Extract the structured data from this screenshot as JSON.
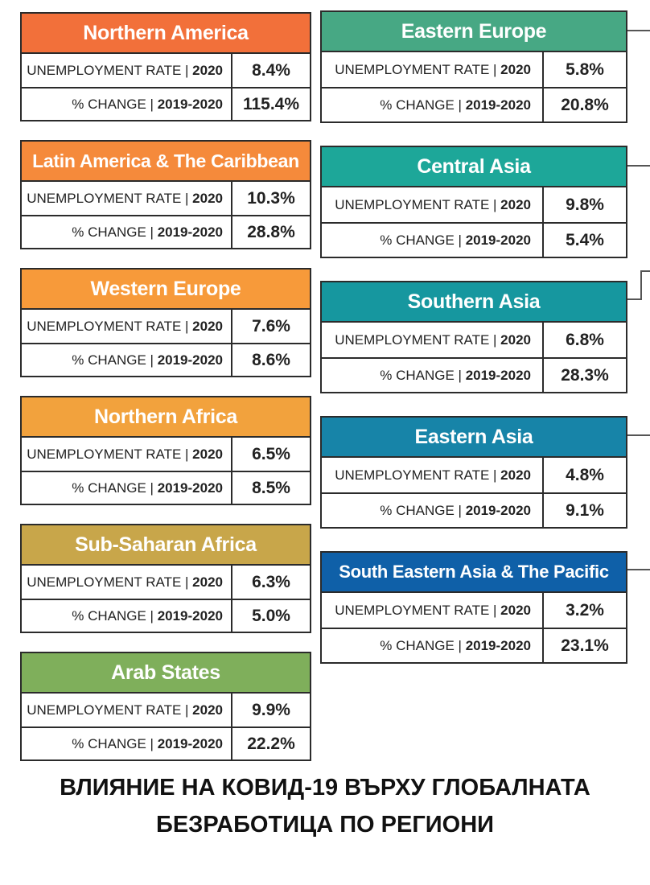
{
  "common": {
    "rate_label": "UNEMPLOYMENT RATE |",
    "rate_year": "2020",
    "change_label": "% CHANGE |",
    "change_years": "2019-2020"
  },
  "regions": {
    "northern_america": {
      "title": "Northern America",
      "color": "#F2703A",
      "rate": "8.4%",
      "change": "115.4%"
    },
    "latin_america": {
      "title": "Latin America & The Caribbean",
      "color": "#F58A3B",
      "rate": "10.3%",
      "change": "28.8%"
    },
    "western_europe": {
      "title": "Western Europe",
      "color": "#F79A3A",
      "rate": "7.6%",
      "change": "8.6%"
    },
    "northern_africa": {
      "title": "Northern Africa",
      "color": "#F2A23D",
      "rate": "6.5%",
      "change": "8.5%"
    },
    "sub_saharan_africa": {
      "title": "Sub-Saharan Africa",
      "color": "#C8A64A",
      "rate": "6.3%",
      "change": "5.0%"
    },
    "arab_states": {
      "title": "Arab States",
      "color": "#7FAF5B",
      "rate": "9.9%",
      "change": "22.2%"
    },
    "eastern_europe": {
      "title": "Eastern Europe",
      "color": "#47A884",
      "rate": "5.8%",
      "change": "20.8%"
    },
    "central_asia": {
      "title": "Central Asia",
      "color": "#1DA799",
      "rate": "9.8%",
      "change": "5.4%"
    },
    "southern_asia": {
      "title": "Southern Asia",
      "color": "#16979F",
      "rate": "6.8%",
      "change": "28.3%"
    },
    "eastern_asia": {
      "title": "Eastern Asia",
      "color": "#1784A8",
      "rate": "4.8%",
      "change": "9.1%"
    },
    "south_eastern_asia": {
      "title": "South Eastern Asia & The Pacific",
      "color": "#0F60A8",
      "rate": "3.2%",
      "change": "23.1%"
    }
  },
  "footer": {
    "line1": "ВЛИЯНИЕ НА КОВИД-19 ВЪРХУ ГЛОБАЛНАТА",
    "line2": "БЕЗРАБОТИЦА ПО РЕГИОНИ"
  }
}
